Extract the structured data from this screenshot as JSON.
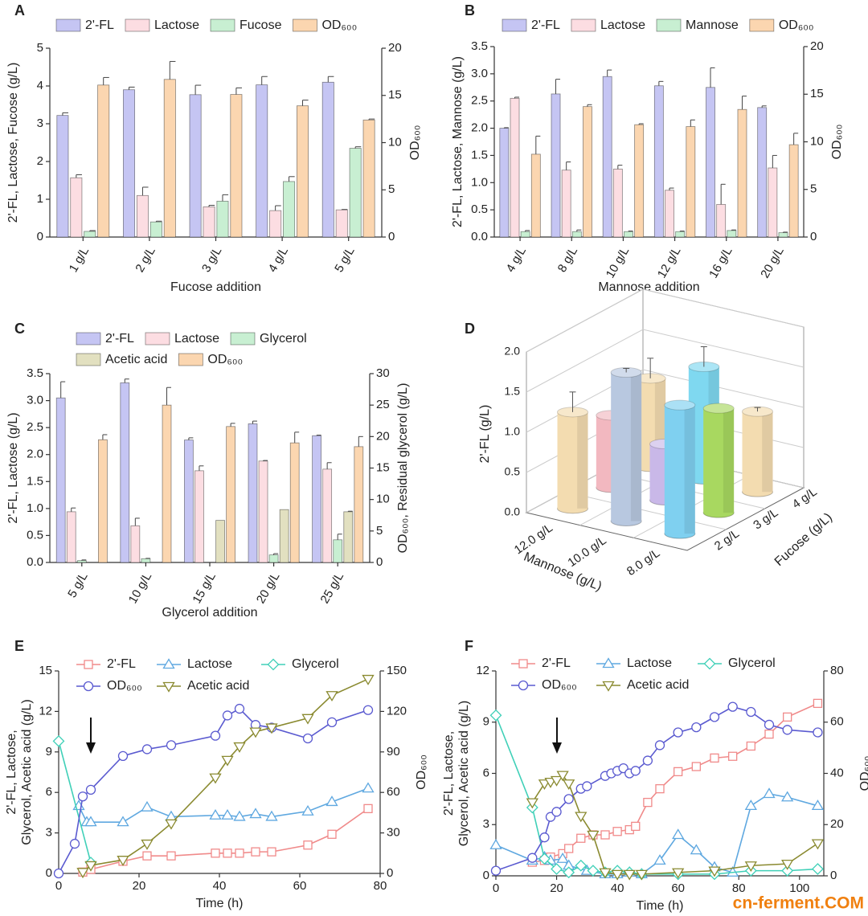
{
  "chart_data": [
    {
      "panel": "A",
      "type": "bar",
      "categories": [
        "1 g/L",
        "2 g/L",
        "3 g/L",
        "4 g/L",
        "5 g/L"
      ],
      "xlabel": "Fucose addition",
      "ylabel": "2'-FL, Lactose, Fucose (g/L)",
      "y2label": "OD₆₀₀",
      "ylim": [
        0,
        5
      ],
      "yticks": [
        0,
        1,
        2,
        3,
        4,
        5
      ],
      "y2lim": [
        0,
        20
      ],
      "y2ticks": [
        0,
        5,
        10,
        15,
        20
      ],
      "series": [
        {
          "name": "2'-FL",
          "color": "#c5c5f3",
          "values": [
            3.22,
            3.9,
            3.77,
            4.03,
            4.1
          ],
          "errors": [
            0.07,
            0.07,
            0.25,
            0.22,
            0.15
          ]
        },
        {
          "name": "Lactose",
          "color": "#fcdde2",
          "values": [
            1.57,
            1.1,
            0.8,
            0.7,
            0.72
          ],
          "errors": [
            0.08,
            0.22,
            0.04,
            0.13,
            0.01
          ]
        },
        {
          "name": "Fucose",
          "color": "#c8efd2",
          "values": [
            0.15,
            0.4,
            0.95,
            1.47,
            2.35
          ],
          "errors": [
            0.02,
            0.02,
            0.17,
            0.13,
            0.04
          ]
        },
        {
          "name": "OD₆₀₀",
          "color": "#fbd6b0",
          "axis": "y2",
          "values": [
            16.1,
            16.7,
            15.1,
            13.9,
            12.4
          ],
          "errors": [
            0.8,
            1.9,
            0.7,
            0.6,
            0.1
          ]
        }
      ]
    },
    {
      "panel": "B",
      "type": "bar",
      "categories": [
        "4 g/L",
        "8 g/L",
        "10 g/L",
        "12 g/L",
        "16 g/L",
        "20 g/L"
      ],
      "xlabel": "Mannose addition",
      "ylabel": "2'-FL, Lactose, Mannose (g/L)",
      "y2label": "OD₆₀₀",
      "ylim": [
        0,
        3.5
      ],
      "yticks": [
        {
          "value": 0,
          "label": "0.0"
        },
        0.5,
        {
          "value": 1,
          "label": "1.0"
        },
        1.5,
        {
          "value": 2,
          "label": "2.0"
        },
        2.5,
        {
          "value": 3,
          "label": "3.0"
        },
        3.5
      ],
      "y2lim": [
        0,
        20
      ],
      "y2ticks": [
        0,
        5,
        10,
        15,
        20
      ],
      "series": [
        {
          "name": "2'-FL",
          "color": "#c5c5f3",
          "values": [
            2.0,
            2.63,
            2.95,
            2.78,
            2.75,
            2.38
          ],
          "errors": [
            0.01,
            0.27,
            0.12,
            0.08,
            0.36,
            0.03
          ]
        },
        {
          "name": "Lactose",
          "color": "#fcdde2",
          "values": [
            2.55,
            1.23,
            1.25,
            0.86,
            0.6,
            1.27
          ],
          "errors": [
            0.02,
            0.15,
            0.07,
            0.04,
            0.37,
            0.23
          ]
        },
        {
          "name": "Mannose",
          "color": "#c8efd2",
          "values": [
            0.1,
            0.1,
            0.1,
            0.1,
            0.12,
            0.08
          ],
          "errors": [
            0.02,
            0.03,
            0.01,
            0.01,
            0.01,
            0.01
          ]
        },
        {
          "name": "OD₆₀₀",
          "color": "#fbd6b0",
          "axis": "y2",
          "values": [
            8.7,
            13.7,
            11.8,
            11.6,
            13.4,
            9.7
          ],
          "errors": [
            1.9,
            0.2,
            0.1,
            0.7,
            1.4,
            1.2
          ]
        }
      ]
    },
    {
      "panel": "C",
      "type": "bar",
      "categories": [
        "5 g/L",
        "10 g/L",
        "15 g/L",
        "20 g/L",
        "25 g/L"
      ],
      "xlabel": "Glycerol addition",
      "ylabel": "2'-FL, Lactose (g/L)",
      "y2label": "OD₆₀₀, Residual glycerol (g/L)",
      "ylim": [
        0,
        3.5
      ],
      "yticks": [
        {
          "value": 0,
          "label": "0.0"
        },
        0.5,
        {
          "value": 1,
          "label": "1.0"
        },
        1.5,
        {
          "value": 2,
          "label": "2.0"
        },
        2.5,
        {
          "value": 3,
          "label": "3.0"
        },
        3.5
      ],
      "y2lim": [
        0,
        30
      ],
      "y2ticks": [
        0,
        5,
        10,
        15,
        20,
        25,
        30
      ],
      "series": [
        {
          "name": "2'-FL",
          "color": "#c5c5f3",
          "values": [
            3.05,
            3.33,
            2.27,
            2.57,
            2.35
          ],
          "errors": [
            0.3,
            0.07,
            0.04,
            0.05,
            0.01
          ]
        },
        {
          "name": "Lactose",
          "color": "#fcdde2",
          "values": [
            0.94,
            0.68,
            1.7,
            1.88,
            1.73
          ],
          "errors": [
            0.07,
            0.14,
            0.09,
            0.01,
            0.12
          ]
        },
        {
          "name": "Glycerol",
          "color": "#c8efd2",
          "axis": "y2",
          "values": [
            0.3,
            0.6,
            0,
            1.2,
            3.6
          ],
          "errors": [
            0.1,
            0.05,
            0,
            0.2,
            0.9
          ]
        },
        {
          "name": "Acetic acid",
          "color": "#e2e0c0",
          "values": [
            0,
            0,
            0.78,
            0.98,
            0.94
          ],
          "errors": [
            0,
            0,
            0,
            0,
            0.01
          ]
        },
        {
          "name": "OD₆₀₀",
          "color": "#fbd6b0",
          "axis": "y2",
          "values": [
            19.5,
            25,
            21.6,
            19,
            18.4
          ],
          "errors": [
            0.8,
            2.8,
            0.5,
            1.7,
            1.6
          ]
        }
      ]
    },
    {
      "panel": "D",
      "type": "bar3d",
      "zlabel": "2'-FL (g/L)",
      "xlabel": "Mannose (g/L)",
      "ylabel": "Fucose (g/L)",
      "x_categories": [
        "12.0 g/L",
        "10.0 g/L",
        "8.0 g/L"
      ],
      "y_categories": [
        "2 g/L",
        "3 g/L",
        "4 g/L"
      ],
      "zlim": [
        0,
        2
      ],
      "zticks": [
        {
          "value": 0,
          "label": "0.0"
        },
        0.5,
        {
          "value": 1,
          "label": "1.0"
        },
        1.5,
        {
          "value": 2,
          "label": "2.0"
        }
      ],
      "values": [
        [
          1.2,
          1.85,
          1.6
        ],
        [
          0.9,
          0.7,
          1.3
        ],
        [
          1.1,
          1.4,
          1.0
        ]
      ],
      "errors": [
        [
          0.25,
          0.05,
          0
        ],
        [
          0,
          0,
          0
        ],
        [
          0.25,
          0.25,
          0.05
        ]
      ],
      "colors": [
        [
          "#f3dcb0",
          "#b8c8e0",
          "#7fd0f0"
        ],
        [
          "#f2b8c0",
          "#c9b8e8",
          "#a8d860"
        ],
        [
          "#f3dcb0",
          "#7fd8f0",
          "#f3dcb0"
        ]
      ]
    },
    {
      "panel": "E",
      "type": "line",
      "xlabel": "Time (h)",
      "ylabel": [
        "2'-FL, Lactose,",
        "Glycerol, Acetic acid (g/L)"
      ],
      "y2label": "OD₆₀₀",
      "xlim": [
        0,
        80
      ],
      "xticks": [
        0,
        20,
        40,
        60,
        80
      ],
      "ylim": [
        0,
        15
      ],
      "yticks": [
        0,
        3,
        6,
        9,
        12,
        15
      ],
      "y2lim": [
        0,
        150
      ],
      "y2ticks": [
        0,
        30,
        60,
        90,
        120,
        150
      ],
      "series": [
        {
          "name": "2'-FL",
          "color": "#f08a8a",
          "marker": "square",
          "x": [
            6,
            8,
            16,
            22,
            28,
            39,
            42,
            45,
            49,
            53,
            62,
            68,
            77
          ],
          "values": [
            0.1,
            0.3,
            0.9,
            1.3,
            1.3,
            1.5,
            1.5,
            1.5,
            1.6,
            1.6,
            2.1,
            2.9,
            4.8
          ]
        },
        {
          "name": "Lactose",
          "color": "#5fa8e0",
          "marker": "triangle",
          "x": [
            5,
            7,
            8,
            16,
            22,
            28,
            39,
            42,
            45,
            49,
            53,
            62,
            68,
            77
          ],
          "values": [
            5.0,
            3.8,
            3.8,
            3.8,
            4.9,
            4.2,
            4.3,
            4.3,
            4.2,
            4.4,
            4.2,
            4.6,
            5.3,
            6.3
          ]
        },
        {
          "name": "Glycerol",
          "color": "#40d0b8",
          "marker": "diamond",
          "x": [
            0,
            8
          ],
          "values": [
            9.8,
            0.8
          ]
        },
        {
          "name": "OD₆₀₀",
          "color": "#5a5ad0",
          "marker": "circle",
          "axis": "y2",
          "x": [
            0,
            4,
            6,
            8,
            16,
            22,
            28,
            39,
            42,
            45,
            49,
            53,
            62,
            68,
            77
          ],
          "values": [
            0,
            22,
            57,
            62,
            87,
            92,
            95,
            102,
            117,
            122,
            110,
            108,
            100,
            112,
            121
          ]
        },
        {
          "name": "Acetic acid",
          "color": "#8a8a30",
          "marker": "down",
          "x": [
            6,
            8,
            16,
            22,
            28,
            39,
            42,
            45,
            49,
            53,
            62,
            68,
            77
          ],
          "values": [
            0.1,
            0.6,
            1.0,
            2.2,
            3.7,
            7.1,
            8.4,
            9.4,
            10.5,
            10.8,
            11.5,
            13.2,
            14.4
          ]
        }
      ]
    },
    {
      "panel": "F",
      "type": "line",
      "xlabel": "Time (h)",
      "ylabel": [
        "2'-FL, Lactose,",
        "Glycerol, Acetic acid (g/L)"
      ],
      "y2label": "OD₆₀₀",
      "xlim": [
        0,
        108
      ],
      "xticks": [
        0,
        20,
        40,
        60,
        80,
        100
      ],
      "ylim": [
        0,
        12
      ],
      "yticks": [
        0,
        3,
        6,
        9,
        12
      ],
      "y2lim": [
        0,
        80
      ],
      "y2ticks": [
        0,
        20,
        40,
        60,
        80
      ],
      "series": [
        {
          "name": "2'-FL",
          "color": "#f08a8a",
          "marker": "square",
          "x": [
            12,
            16,
            18,
            22,
            24,
            28,
            32,
            36,
            40,
            44,
            46,
            50,
            54,
            60,
            66,
            72,
            78,
            84,
            90,
            96,
            106
          ],
          "values": [
            0.8,
            0.9,
            1.1,
            1.3,
            1.6,
            2.2,
            2.4,
            2.4,
            2.6,
            2.7,
            2.9,
            4.3,
            5.1,
            6.1,
            6.4,
            6.9,
            7.0,
            7.6,
            8.3,
            9.3,
            10.1
          ]
        },
        {
          "name": "Lactose",
          "color": "#5fa8e0",
          "marker": "triangle",
          "x": [
            0,
            12,
            16,
            18,
            22,
            24,
            30,
            36,
            40,
            44,
            48,
            54,
            60,
            66,
            72,
            78,
            84,
            90,
            96,
            106
          ],
          "values": [
            1.8,
            0.9,
            1.1,
            0.9,
            1.0,
            0.6,
            0.3,
            0.1,
            0.1,
            0.2,
            0.1,
            0.9,
            2.4,
            1.5,
            0.5,
            0.2,
            4.1,
            4.8,
            4.6,
            4.1
          ]
        },
        {
          "name": "Glycerol",
          "color": "#40d0b8",
          "marker": "diamond",
          "x": [
            0,
            12,
            16,
            20,
            24,
            28,
            32,
            36,
            40,
            44,
            48,
            60,
            72,
            84,
            96,
            106
          ],
          "values": [
            9.4,
            4.0,
            1.0,
            0.4,
            0.2,
            0.6,
            0.3,
            0.2,
            0.3,
            0.2,
            0.1,
            0.1,
            0.1,
            0.3,
            0.3,
            0.4
          ]
        },
        {
          "name": "OD₆₀₀",
          "color": "#5a5ad0",
          "marker": "circle",
          "axis": "y2",
          "x": [
            0,
            12,
            16,
            18,
            20,
            24,
            28,
            30,
            36,
            38,
            40,
            42,
            44,
            46,
            50,
            54,
            60,
            66,
            72,
            78,
            84,
            90,
            96,
            106
          ],
          "values": [
            2,
            7,
            15,
            23,
            25,
            30,
            34,
            35,
            39,
            40,
            41,
            42,
            40,
            41,
            45,
            51,
            56,
            58,
            62,
            66,
            64,
            59,
            57,
            56
          ]
        },
        {
          "name": "Acetic acid",
          "color": "#8a8a30",
          "marker": "down",
          "x": [
            12,
            16,
            18,
            20,
            22,
            24,
            28,
            32,
            36,
            40,
            44,
            48,
            60,
            72,
            84,
            96,
            106
          ],
          "values": [
            4.3,
            5.4,
            5.5,
            5.6,
            5.9,
            5.4,
            3.5,
            2.4,
            0.2,
            0.1,
            0.1,
            0.1,
            0.2,
            0.3,
            0.6,
            0.7,
            1.9
          ]
        }
      ]
    }
  ],
  "watermark": "cn-ferment.COM"
}
